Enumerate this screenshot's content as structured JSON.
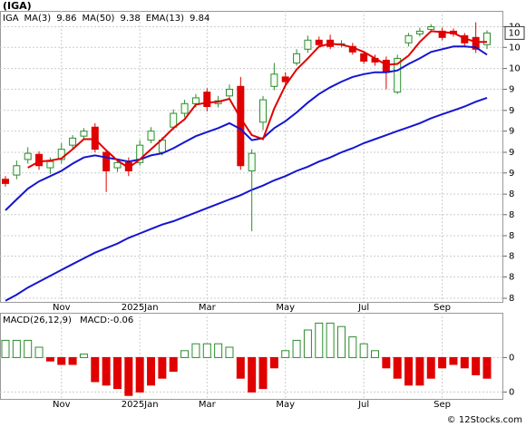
{
  "chart_data": [
    {
      "type": "candlestick",
      "title": "(IGA)",
      "name": "IGA",
      "categories": [
        null,
        null,
        null,
        null,
        null,
        "Nov",
        null,
        null,
        null,
        null,
        null,
        null,
        "2025Jan",
        null,
        null,
        null,
        null,
        null,
        "Mar",
        null,
        null,
        null,
        null,
        null,
        null,
        "May",
        null,
        null,
        null,
        null,
        null,
        null,
        "Jul",
        null,
        null,
        null,
        null,
        null,
        null,
        "Sep",
        null,
        null,
        null,
        null
      ],
      "open": [
        8.57,
        8.61,
        8.76,
        8.81,
        8.68,
        8.76,
        8.9,
        8.99,
        9.08,
        8.83,
        8.68,
        8.73,
        8.73,
        8.95,
        8.83,
        9.08,
        9.22,
        9.32,
        9.44,
        9.32,
        9.4,
        9.5,
        8.65,
        9.13,
        9.5,
        9.6,
        9.75,
        9.9,
        10.0,
        10.0,
        9.95,
        9.93,
        9.85,
        9.8,
        9.78,
        9.44,
        9.97,
        10.07,
        10.12,
        10.1,
        10.1,
        10.05,
        10.03,
        9.95
      ],
      "high": [
        8.6,
        8.75,
        8.88,
        8.84,
        8.78,
        8.92,
        9.0,
        9.07,
        9.12,
        8.86,
        8.77,
        8.78,
        8.95,
        9.08,
        8.98,
        9.26,
        9.36,
        9.42,
        9.48,
        9.4,
        9.52,
        9.6,
        8.86,
        9.4,
        9.75,
        9.65,
        9.9,
        10.05,
        10.04,
        10.06,
        10.0,
        9.97,
        9.88,
        9.84,
        9.82,
        9.84,
        10.08,
        10.14,
        10.18,
        10.14,
        10.13,
        10.08,
        10.2,
        10.11
      ],
      "low": [
        8.5,
        8.57,
        8.72,
        8.66,
        8.62,
        8.72,
        8.86,
        8.96,
        8.83,
        8.45,
        8.64,
        8.6,
        8.7,
        8.92,
        8.8,
        9.05,
        9.18,
        9.28,
        9.24,
        9.28,
        9.36,
        8.66,
        8.09,
        9.05,
        9.46,
        9.5,
        9.72,
        9.86,
        9.92,
        9.9,
        9.92,
        9.84,
        9.74,
        9.72,
        9.47,
        9.42,
        9.93,
        10.04,
        10.09,
        10.0,
        10.04,
        9.93,
        9.86,
        9.9
      ],
      "close": [
        8.53,
        8.7,
        8.82,
        8.7,
        8.74,
        8.86,
        8.97,
        9.04,
        8.86,
        8.65,
        8.73,
        8.65,
        8.9,
        9.04,
        8.95,
        9.22,
        9.32,
        9.38,
        9.29,
        9.35,
        9.47,
        8.7,
        8.82,
        9.36,
        9.63,
        9.55,
        9.85,
        10.0,
        9.95,
        9.93,
        9.96,
        9.87,
        9.77,
        9.76,
        9.65,
        9.8,
        10.05,
        10.1,
        10.15,
        10.03,
        10.07,
        9.97,
        9.9,
        10.08
      ],
      "up_color": "#2e8b2e",
      "down_color": "#e00000",
      "overlays": [
        {
          "name": "MA(50)",
          "legend_value": 9.38,
          "color": "#1515d0",
          "values": [
            7.49,
            7.54,
            7.6,
            7.65,
            7.7,
            7.75,
            7.8,
            7.85,
            7.9,
            7.94,
            7.98,
            8.03,
            8.07,
            8.11,
            8.15,
            8.18,
            8.22,
            8.26,
            8.3,
            8.34,
            8.38,
            8.42,
            8.47,
            8.51,
            8.56,
            8.6,
            8.65,
            8.69,
            8.74,
            8.78,
            8.83,
            8.87,
            8.92,
            8.96,
            9.0,
            9.04,
            9.08,
            9.12,
            9.17,
            9.21,
            9.25,
            9.29,
            9.34,
            9.38
          ]
        },
        {
          "name": "EMA(13)",
          "legend_value": 9.84,
          "color": "#1515d0",
          "values": [
            8.28,
            8.38,
            8.48,
            8.55,
            8.6,
            8.65,
            8.72,
            8.78,
            8.8,
            8.78,
            8.76,
            8.74,
            8.76,
            8.8,
            8.82,
            8.87,
            8.93,
            8.99,
            9.03,
            9.07,
            9.12,
            9.06,
            8.95,
            8.97,
            9.07,
            9.14,
            9.23,
            9.33,
            9.42,
            9.49,
            9.55,
            9.6,
            9.63,
            9.65,
            9.65,
            9.67,
            9.74,
            9.8,
            9.87,
            9.9,
            9.93,
            9.93,
            9.92,
            9.84
          ]
        },
        {
          "name": "MA(3)",
          "legend_value": 9.86,
          "color": "#e00000",
          "values": [
            null,
            null,
            8.68,
            8.74,
            8.75,
            8.77,
            8.86,
            8.96,
            8.96,
            8.85,
            8.75,
            8.68,
            8.76,
            8.86,
            8.96,
            9.07,
            9.16,
            9.31,
            9.33,
            9.34,
            9.37,
            9.17,
            9.0,
            8.96,
            9.27,
            9.51,
            9.68,
            9.8,
            9.93,
            9.96,
            9.95,
            9.92,
            9.87,
            9.8,
            9.73,
            9.74,
            9.83,
            9.98,
            10.1,
            10.09,
            10.08,
            10.02,
            9.98,
            9.98
          ]
        }
      ],
      "legend_order": [
        "MA(3)",
        "MA(50)",
        "EMA(13)"
      ],
      "log": true,
      "ylim": [
        7.48,
        10.33
      ],
      "yticks": [
        {
          "value": 10.15,
          "label": "10"
        },
        {
          "value": 9.92,
          "label": "10"
        },
        {
          "value": 9.69,
          "label": "10"
        },
        {
          "value": 9.47,
          "label": "9"
        },
        {
          "value": 9.25,
          "label": "9"
        },
        {
          "value": 9.04,
          "label": "9"
        },
        {
          "value": 8.83,
          "label": "9"
        },
        {
          "value": 8.63,
          "label": "9"
        },
        {
          "value": 8.43,
          "label": "8"
        },
        {
          "value": 8.24,
          "label": "8"
        },
        {
          "value": 8.05,
          "label": "8"
        },
        {
          "value": 7.87,
          "label": "8"
        },
        {
          "value": 7.69,
          "label": "8"
        },
        {
          "value": 7.51,
          "label": "8"
        }
      ],
      "grid": true,
      "last_price": {
        "value": 10.08,
        "label": "10"
      }
    },
    {
      "type": "bar",
      "title": "MACD(26,12,9)",
      "legend": "MACD:-0.06",
      "categories": [
        null,
        null,
        null,
        null,
        null,
        "Nov",
        null,
        null,
        null,
        null,
        null,
        null,
        "2025Jan",
        null,
        null,
        null,
        null,
        null,
        "Mar",
        null,
        null,
        null,
        null,
        null,
        null,
        "May",
        null,
        null,
        null,
        null,
        null,
        null,
        "Jul",
        null,
        null,
        null,
        null,
        null,
        null,
        "Sep",
        null,
        null,
        null,
        null
      ],
      "values": [
        0.05,
        0.05,
        0.05,
        0.03,
        -0.01,
        -0.02,
        -0.02,
        0.01,
        -0.07,
        -0.08,
        -0.09,
        -0.11,
        -0.1,
        -0.08,
        -0.06,
        -0.04,
        0.02,
        0.04,
        0.04,
        0.04,
        0.03,
        -0.06,
        -0.1,
        -0.09,
        -0.03,
        0.02,
        0.05,
        0.08,
        0.1,
        0.1,
        0.09,
        0.06,
        0.04,
        0.02,
        -0.03,
        -0.06,
        -0.08,
        -0.08,
        -0.06,
        -0.03,
        -0.02,
        -0.03,
        -0.05,
        -0.06
      ],
      "pos_color": "#2e8b2e",
      "neg_color": "#e00000",
      "ylim": [
        -0.12,
        0.13
      ],
      "yticks": [
        0,
        {
          "value": -0.1,
          "label": "0"
        }
      ],
      "grid": true
    }
  ],
  "footer": "© 12Stocks.com"
}
